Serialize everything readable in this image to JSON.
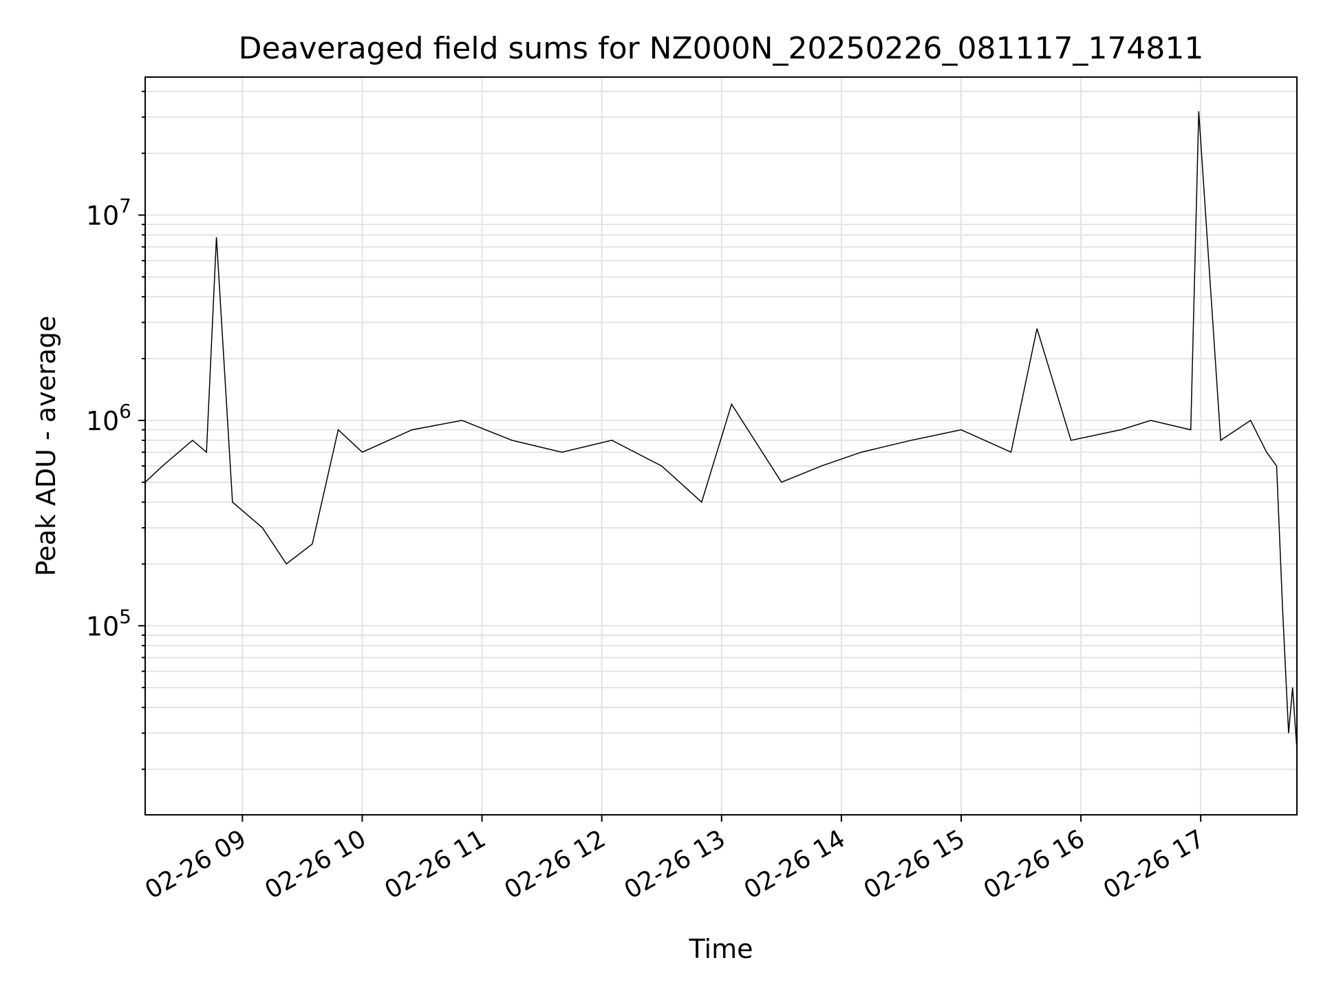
{
  "chart_data": {
    "type": "line",
    "title": "Deaveraged field sums for NZ000N_20250226_081117_174811",
    "xlabel": "Time",
    "ylabel": "Peak ADU - average",
    "yscale": "log",
    "ylim": [
      12000,
      47000000
    ],
    "xlim": [
      "2025-02-26 08:11:17",
      "2025-02-26 17:48:11"
    ],
    "grid": true,
    "line_color": "#000000",
    "x_ticks": [
      {
        "value": "2025-02-26 09:00",
        "label": "02-26 09"
      },
      {
        "value": "2025-02-26 10:00",
        "label": "02-26 10"
      },
      {
        "value": "2025-02-26 11:00",
        "label": "02-26 11"
      },
      {
        "value": "2025-02-26 12:00",
        "label": "02-26 12"
      },
      {
        "value": "2025-02-26 13:00",
        "label": "02-26 13"
      },
      {
        "value": "2025-02-26 14:00",
        "label": "02-26 14"
      },
      {
        "value": "2025-02-26 15:00",
        "label": "02-26 15"
      },
      {
        "value": "2025-02-26 16:00",
        "label": "02-26 16"
      },
      {
        "value": "2025-02-26 17:00",
        "label": "02-26 17"
      }
    ],
    "y_ticks": [
      {
        "value": 100000,
        "base": "10",
        "exp": "5"
      },
      {
        "value": 1000000,
        "base": "10",
        "exp": "6"
      },
      {
        "value": 10000000,
        "base": "10",
        "exp": "7"
      }
    ],
    "series": [
      {
        "x": [
          "2025-02-26 08:11:17",
          "2025-02-26 08:20",
          "2025-02-26 08:35",
          "2025-02-26 08:42",
          "2025-02-26 08:47",
          "2025-02-26 08:55",
          "2025-02-26 09:10",
          "2025-02-26 09:22",
          "2025-02-26 09:35",
          "2025-02-26 09:48",
          "2025-02-26 10:00",
          "2025-02-26 10:25",
          "2025-02-26 10:50",
          "2025-02-26 11:15",
          "2025-02-26 11:40",
          "2025-02-26 12:05",
          "2025-02-26 12:30",
          "2025-02-26 12:50",
          "2025-02-26 13:05",
          "2025-02-26 13:30",
          "2025-02-26 13:50",
          "2025-02-26 14:10",
          "2025-02-26 14:35",
          "2025-02-26 15:00",
          "2025-02-26 15:25",
          "2025-02-26 15:38",
          "2025-02-26 15:55",
          "2025-02-26 16:20",
          "2025-02-26 16:35",
          "2025-02-26 16:55",
          "2025-02-26 16:59",
          "2025-02-26 17:10",
          "2025-02-26 17:25",
          "2025-02-26 17:33",
          "2025-02-26 17:38",
          "2025-02-26 17:41",
          "2025-02-26 17:44",
          "2025-02-26 17:46",
          "2025-02-26 17:48:11"
        ],
        "y": [
          500000,
          600000,
          800000,
          700000,
          7800000,
          400000,
          300000,
          200000,
          250000,
          900000,
          700000,
          900000,
          1000000,
          800000,
          700000,
          800000,
          600000,
          400000,
          1200000,
          500000,
          600000,
          700000,
          800000,
          900000,
          700000,
          2800000,
          800000,
          900000,
          1000000,
          900000,
          32000000,
          800000,
          1000000,
          700000,
          600000,
          120000,
          30000,
          50000,
          25000
        ]
      }
    ]
  }
}
